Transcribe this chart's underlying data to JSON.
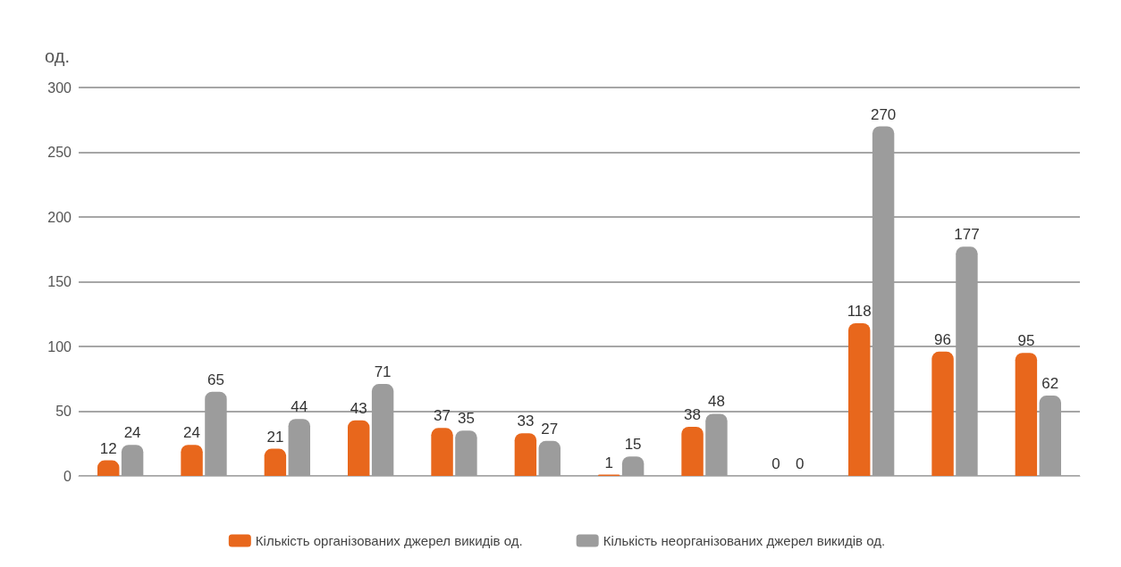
{
  "chart_data": {
    "type": "bar",
    "ylabel": "од.",
    "categories": [
      null,
      null,
      null,
      null,
      null,
      null,
      null,
      null,
      null,
      null,
      null,
      null
    ],
    "series": [
      {
        "name": "Кількість організованих джерел викидів од.",
        "color": "#e8671c",
        "values": [
          12,
          24,
          21,
          43,
          37,
          33,
          1,
          38,
          0,
          118,
          96,
          95
        ]
      },
      {
        "name": "Кількість неорганізованих джерел викидів од.",
        "color": "#9c9c9c",
        "values": [
          24,
          65,
          44,
          71,
          35,
          27,
          15,
          48,
          0,
          270,
          177,
          62
        ]
      }
    ],
    "ylim": [
      0,
      300
    ],
    "yticks": [
      0,
      50,
      100,
      150,
      200,
      250,
      300
    ],
    "grid": "y",
    "legend": "bottom",
    "data_labels": true
  }
}
